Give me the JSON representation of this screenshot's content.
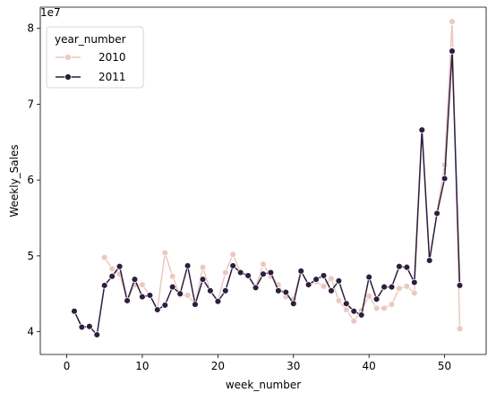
{
  "chart_data": {
    "type": "line",
    "xlabel": "week_number",
    "ylabel": "Weekly_Sales",
    "offset_text": "1e7",
    "xlim": [
      -3.5,
      55.5
    ],
    "ylim": [
      37000000,
      82800000
    ],
    "xticks": [
      0,
      10,
      20,
      30,
      40,
      50
    ],
    "yticks": [
      40000000,
      50000000,
      60000000,
      70000000,
      80000000
    ],
    "ytick_labels": [
      "4",
      "5",
      "6",
      "7",
      "8"
    ],
    "grid": false,
    "legend": {
      "title": "year_number",
      "placement": "top-left"
    },
    "series": [
      {
        "name": "2010",
        "color": "#ebc9c1",
        "x": [
          5,
          6,
          7,
          8,
          9,
          10,
          11,
          12,
          13,
          14,
          15,
          16,
          17,
          18,
          19,
          20,
          21,
          22,
          23,
          24,
          25,
          26,
          27,
          28,
          29,
          30,
          31,
          32,
          33,
          34,
          35,
          36,
          37,
          38,
          39,
          40,
          41,
          42,
          43,
          44,
          45,
          46,
          47,
          48,
          49,
          50,
          51,
          52
        ],
        "values": [
          49800000,
          48300000,
          47600000,
          44100000,
          46200000,
          46200000,
          44800000,
          42900000,
          50400000,
          47300000,
          44800000,
          44800000,
          43600000,
          48500000,
          45400000,
          44100000,
          47800000,
          50200000,
          47800000,
          47300000,
          45800000,
          48900000,
          47300000,
          46200000,
          44600000,
          44300000,
          48000000,
          46200000,
          46600000,
          46000000,
          47000000,
          44100000,
          42900000,
          41400000,
          42800000,
          44700000,
          43100000,
          43100000,
          43600000,
          45700000,
          46000000,
          45100000,
          66600000,
          49400000,
          55700000,
          62000000,
          80900000,
          40400000
        ]
      },
      {
        "name": "2011",
        "color": "#2d1e3e",
        "x": [
          1,
          2,
          3,
          4,
          5,
          6,
          7,
          8,
          9,
          10,
          11,
          12,
          13,
          14,
          15,
          16,
          17,
          18,
          19,
          20,
          21,
          22,
          23,
          24,
          25,
          26,
          27,
          28,
          29,
          30,
          31,
          32,
          33,
          34,
          35,
          36,
          37,
          38,
          39,
          40,
          41,
          42,
          43,
          44,
          45,
          46,
          47,
          48,
          49,
          50,
          51,
          52
        ],
        "values": [
          42700000,
          40600000,
          40700000,
          39600000,
          46100000,
          47300000,
          48600000,
          44100000,
          46900000,
          44600000,
          44800000,
          42900000,
          43500000,
          45900000,
          45000000,
          48700000,
          43600000,
          46900000,
          45400000,
          44000000,
          45400000,
          48700000,
          47800000,
          47400000,
          45800000,
          47600000,
          47800000,
          45400000,
          45200000,
          43700000,
          48000000,
          46200000,
          46900000,
          47400000,
          45400000,
          46700000,
          43700000,
          42700000,
          42200000,
          47200000,
          44300000,
          45900000,
          45900000,
          48600000,
          48500000,
          46500000,
          66600000,
          49400000,
          55600000,
          60200000,
          77000000,
          46100000
        ]
      }
    ]
  }
}
